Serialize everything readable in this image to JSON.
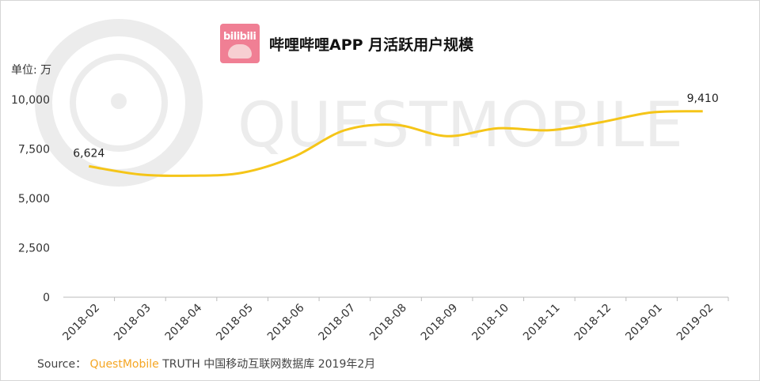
{
  "title": "哔哩哔哩APP 月活跃用户规模",
  "unit_label": "单位: 万",
  "logo_text": "bilibili",
  "source": {
    "prefix": "Source：",
    "brand": "QuestMobile",
    "suffix": " TRUTH 中国移动互联网数据库 2019年2月"
  },
  "watermark_text": "QUESTMOBILE",
  "colors": {
    "line": "#f5c518",
    "logo_bg": "#f07f94",
    "brand": "#f5a623",
    "axis": "#bbbbbb"
  },
  "chart_data": {
    "type": "line",
    "categories": [
      "2018-02",
      "2018-03",
      "2018-04",
      "2018-05",
      "2018-06",
      "2018-07",
      "2018-08",
      "2018-09",
      "2018-10",
      "2018-11",
      "2018-12",
      "2019-01",
      "2019-02"
    ],
    "series": [
      {
        "values": [
          6624,
          6210,
          6150,
          6300,
          7100,
          8450,
          8720,
          8150,
          8550,
          8450,
          8850,
          9350,
          9410
        ]
      }
    ],
    "y_ticks": [
      "0",
      "2,500",
      "5,000",
      "7,500",
      "10,000"
    ],
    "ylim": [
      0,
      10000
    ],
    "labels": [
      {
        "index": 0,
        "text": "6,624"
      },
      {
        "index": 12,
        "text": "9,410"
      }
    ],
    "grid": false
  }
}
